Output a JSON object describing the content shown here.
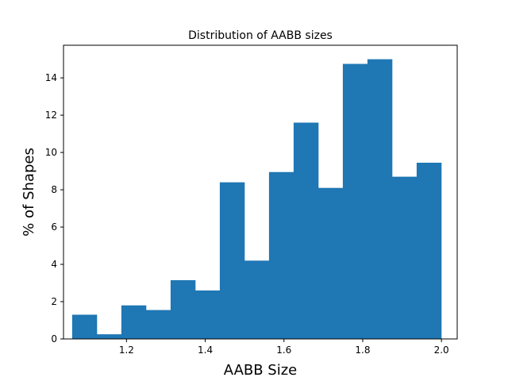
{
  "chart_data": {
    "type": "bar",
    "title": "Distribution of AABB sizes",
    "xlabel": "AABB Size",
    "ylabel": "% of Shapes",
    "xlim": [
      1.04,
      2.04
    ],
    "ylim": [
      0,
      15.75
    ],
    "xticks": [
      "1.2",
      "1.4",
      "1.6",
      "1.8",
      "2.0"
    ],
    "yticks": [
      "0",
      "2",
      "4",
      "6",
      "8",
      "10",
      "12",
      "14"
    ],
    "bin_edges": [
      1.062,
      1.1245,
      1.187,
      1.2495,
      1.312,
      1.3745,
      1.437,
      1.4995,
      1.562,
      1.6245,
      1.687,
      1.7495,
      1.812,
      1.8745,
      1.937,
      1.9995
    ],
    "values": [
      1.3,
      0.25,
      1.8,
      1.55,
      3.15,
      2.6,
      8.4,
      4.2,
      8.95,
      11.6,
      8.1,
      14.75,
      15.0,
      8.7,
      9.45
    ],
    "grid": false,
    "colors": {
      "bar": "#1f77b4",
      "axis": "#000000"
    }
  }
}
